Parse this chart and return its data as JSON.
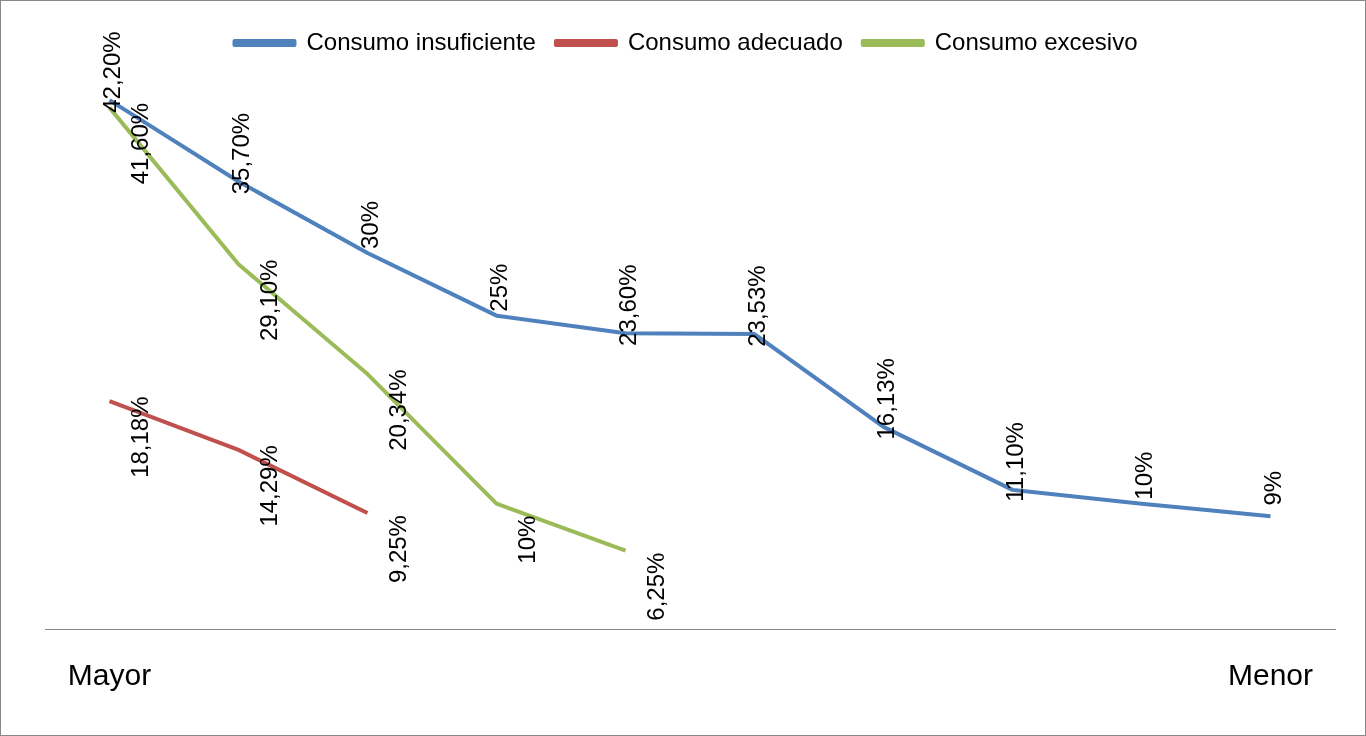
{
  "chart_data": {
    "type": "line",
    "categories": [
      "Mayor",
      null,
      null,
      null,
      null,
      null,
      null,
      null,
      null,
      "Menor"
    ],
    "series": [
      {
        "name": "Consumo insuficiente",
        "color": "#4f81bd",
        "values": [
          42.2,
          35.7,
          30,
          25,
          23.6,
          23.53,
          16.13,
          11.1,
          10,
          9
        ],
        "value_labels": [
          "42,20%",
          "35,70%",
          "30%",
          "25%",
          "23,60%",
          "23,53%",
          "16,13%",
          "11,10%",
          "10%",
          "9%"
        ]
      },
      {
        "name": "Consumo adecuado",
        "color": "#c0504d",
        "values": [
          18.18,
          14.29,
          9.25,
          null,
          null,
          null,
          null,
          null,
          null,
          null
        ],
        "value_labels": [
          "18,18%",
          "14,29%",
          "9,25%",
          null,
          null,
          null,
          null,
          null,
          null,
          null
        ]
      },
      {
        "name": "Consumo excesivo",
        "color": "#9bbb59",
        "values": [
          41.6,
          29.1,
          20.34,
          10,
          6.25,
          null,
          null,
          null,
          null,
          null
        ],
        "value_labels": [
          "41,60%",
          "29,10%",
          "20,34%",
          "10%",
          "6,25%",
          null,
          null,
          null,
          null,
          null
        ]
      }
    ],
    "tick_labels": "x",
    "grid": false,
    "legend": "top",
    "marker": "none",
    "line_style": "solid"
  }
}
